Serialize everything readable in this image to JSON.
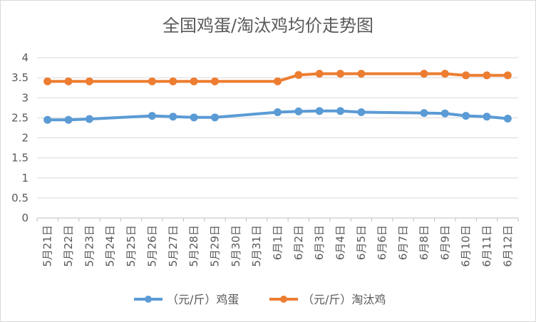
{
  "chart_data": {
    "type": "line",
    "title": "全国鸡蛋/淘汰鸡均价走势图",
    "xlabel": "",
    "ylabel": "",
    "categories": [
      "5月21日",
      "5月22日",
      "5月23日",
      "5月24日",
      "5月25日",
      "5月26日",
      "5月27日",
      "5月28日",
      "5月29日",
      "5月30日",
      "5月31日",
      "6月1日",
      "6月2日",
      "6月3日",
      "6月4日",
      "6月5日",
      "6月6日",
      "6月7日",
      "6月8日",
      "6月9日",
      "6月10日",
      "6月11日",
      "6月12日"
    ],
    "ylim": [
      0,
      4
    ],
    "yticks": [
      0,
      0.5,
      1,
      1.5,
      2,
      2.5,
      3,
      3.5,
      4
    ],
    "ytick_labels": [
      "0",
      "0.5",
      "1",
      "1.5",
      "2",
      "2.5",
      "3",
      "3.5",
      "4"
    ],
    "grid": "horizontal",
    "legend_position": "bottom",
    "series": [
      {
        "name": "（元/斤）鸡蛋",
        "color": "#5b9bd5",
        "values": [
          2.45,
          2.45,
          2.47,
          null,
          null,
          2.55,
          2.53,
          2.51,
          2.51,
          null,
          null,
          2.64,
          2.66,
          2.67,
          2.67,
          2.64,
          null,
          null,
          2.62,
          2.61,
          2.55,
          2.53,
          2.48
        ]
      },
      {
        "name": "（元/斤）淘汰鸡",
        "color": "#ed7d31",
        "values": [
          3.41,
          3.41,
          3.41,
          null,
          null,
          3.41,
          3.41,
          3.41,
          3.41,
          null,
          null,
          3.41,
          3.57,
          3.6,
          3.6,
          3.6,
          null,
          null,
          3.6,
          3.6,
          3.56,
          3.56,
          3.56
        ]
      }
    ]
  }
}
